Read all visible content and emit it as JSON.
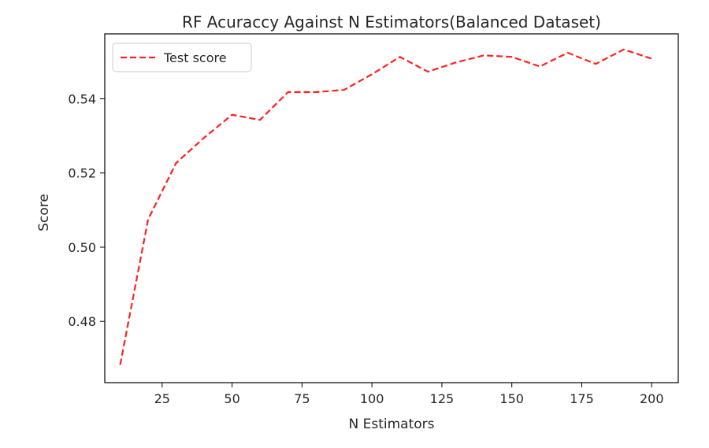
{
  "chart_data": {
    "type": "line",
    "title": "RF Acuraccy Against N Estimators(Balanced Dataset)",
    "xlabel": "N Estimators",
    "ylabel": "Score",
    "xlim": [
      4.5,
      209.5
    ],
    "ylim": [
      0.4635,
      0.5575
    ],
    "xticks": [
      25,
      50,
      75,
      100,
      125,
      150,
      175,
      200
    ],
    "xtick_labels": [
      "25",
      "50",
      "75",
      "100",
      "125",
      "150",
      "175",
      "200"
    ],
    "yticks": [
      0.48,
      0.5,
      0.52,
      0.54
    ],
    "ytick_labels": [
      "0.48",
      "0.50",
      "0.52",
      "0.54"
    ],
    "grid": false,
    "legend_position": "top-left",
    "series": [
      {
        "name": "Test score",
        "color": "#ff2020",
        "line_style": "dashed",
        "x": [
          10,
          20,
          30,
          40,
          50,
          60,
          70,
          80,
          90,
          100,
          110,
          120,
          130,
          140,
          150,
          160,
          170,
          180,
          190,
          200
        ],
        "y": [
          0.4683,
          0.5075,
          0.5227,
          0.5295,
          0.5357,
          0.5343,
          0.5418,
          0.5418,
          0.5424,
          0.5466,
          0.5513,
          0.5473,
          0.5498,
          0.5517,
          0.5513,
          0.5487,
          0.5524,
          0.5494,
          0.5533,
          0.5508
        ]
      }
    ]
  }
}
